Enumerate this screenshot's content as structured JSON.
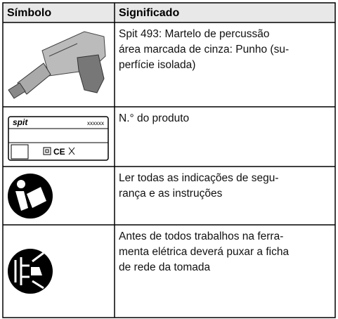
{
  "table": {
    "header": [
      "Símbolo",
      "Significado"
    ],
    "rows": [
      {
        "lines": [
          "Spit 493: Martelo de percussão",
          "área marcada de cinza: Punho (su-",
          "perfície isolada)"
        ]
      },
      {
        "lines": [
          "N.° do produto"
        ],
        "label_logo": "spit",
        "label_code": "xxxxxx"
      },
      {
        "lines": [
          "Ler todas as indicações de segu-",
          "rança e as instruções"
        ]
      },
      {
        "lines": [
          "Antes de todos trabalhos na ferra-",
          "menta elétrica deverá puxar a ficha",
          "de rede da tomada"
        ]
      }
    ]
  }
}
